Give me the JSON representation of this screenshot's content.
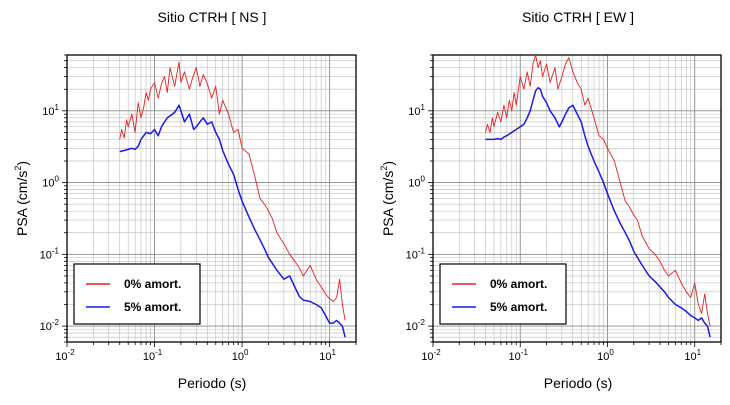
{
  "chart_data": [
    {
      "type": "line",
      "title": "Sitio CTRH [ NS ]",
      "xlabel": "Periodo (s)",
      "ylabel": "PSA (cm/s",
      "ylabel_sup": "2",
      "ylabel_close": ")",
      "xscale": "log",
      "yscale": "log",
      "xlim": [
        0.01,
        20
      ],
      "ylim": [
        0.006,
        60
      ],
      "grid": true,
      "legend_position": "bottom-left",
      "x_ticks": [
        {
          "base": "10",
          "exp": "-2",
          "value": 0.01
        },
        {
          "base": "10",
          "exp": "-1",
          "value": 0.1
        },
        {
          "base": "10",
          "exp": "0",
          "value": 1
        },
        {
          "base": "10",
          "exp": "1",
          "value": 10
        }
      ],
      "y_ticks": [
        {
          "base": "10",
          "exp": "-2",
          "value": 0.01
        },
        {
          "base": "10",
          "exp": "-1",
          "value": 0.1
        },
        {
          "base": "10",
          "exp": "0",
          "value": 1
        },
        {
          "base": "10",
          "exp": "1",
          "value": 10
        }
      ],
      "series": [
        {
          "name": "0% amort.",
          "color": "#e8201e",
          "x": [
            0.04,
            0.042,
            0.045,
            0.048,
            0.05,
            0.055,
            0.06,
            0.065,
            0.07,
            0.075,
            0.08,
            0.085,
            0.09,
            0.1,
            0.11,
            0.12,
            0.13,
            0.14,
            0.15,
            0.17,
            0.19,
            0.2,
            0.22,
            0.25,
            0.27,
            0.3,
            0.33,
            0.36,
            0.4,
            0.45,
            0.5,
            0.55,
            0.6,
            0.7,
            0.8,
            0.9,
            1.0,
            1.2,
            1.4,
            1.6,
            1.8,
            2.0,
            2.2,
            2.5,
            3.0,
            3.5,
            4.0,
            4.5,
            5.0,
            6.0,
            7.0,
            8.0,
            9.0,
            10.0,
            11.0,
            12.0,
            13.0,
            14.0,
            15.0
          ],
          "values": [
            4.0,
            5.5,
            4.2,
            7.5,
            6.0,
            9.0,
            5.0,
            13.0,
            8.0,
            11.0,
            18.0,
            14.0,
            20.0,
            25.0,
            15.0,
            24.0,
            30.0,
            18.0,
            40.0,
            22.0,
            48.0,
            25.0,
            35.0,
            20.0,
            28.0,
            40.0,
            22.0,
            32.0,
            24.0,
            15.0,
            22.0,
            9.0,
            14.0,
            9.0,
            5.0,
            5.5,
            3.0,
            2.5,
            1.2,
            0.6,
            0.5,
            0.4,
            0.32,
            0.2,
            0.14,
            0.1,
            0.08,
            0.065,
            0.05,
            0.07,
            0.045,
            0.035,
            0.028,
            0.024,
            0.022,
            0.025,
            0.045,
            0.02,
            0.012
          ]
        },
        {
          "name": "5% amort.",
          "color": "#1a1aee",
          "x": [
            0.04,
            0.045,
            0.05,
            0.055,
            0.06,
            0.065,
            0.07,
            0.08,
            0.09,
            0.1,
            0.11,
            0.12,
            0.13,
            0.14,
            0.15,
            0.17,
            0.19,
            0.2,
            0.22,
            0.25,
            0.28,
            0.3,
            0.33,
            0.36,
            0.4,
            0.45,
            0.5,
            0.55,
            0.6,
            0.7,
            0.8,
            0.9,
            1.0,
            1.2,
            1.4,
            1.6,
            1.8,
            2.0,
            2.5,
            3.0,
            3.5,
            4.0,
            4.5,
            5.0,
            6.0,
            7.0,
            8.0,
            9.0,
            10.0,
            11.0,
            12.0,
            13.0,
            14.0,
            15.0
          ],
          "values": [
            2.7,
            2.8,
            2.9,
            3.0,
            2.9,
            3.2,
            4.0,
            5.0,
            4.8,
            5.5,
            4.5,
            6.0,
            7.0,
            8.0,
            8.5,
            9.5,
            12.0,
            10.0,
            7.0,
            9.0,
            5.5,
            6.0,
            7.0,
            8.0,
            6.5,
            7.0,
            5.0,
            4.0,
            2.8,
            1.8,
            1.3,
            0.8,
            0.55,
            0.33,
            0.22,
            0.16,
            0.12,
            0.09,
            0.06,
            0.045,
            0.05,
            0.035,
            0.026,
            0.023,
            0.022,
            0.02,
            0.018,
            0.014,
            0.011,
            0.011,
            0.012,
            0.011,
            0.01,
            0.007
          ]
        }
      ]
    },
    {
      "type": "line",
      "title": "Sitio CTRH [ EW ]",
      "xlabel": "Periodo (s)",
      "ylabel": "PSA (cm/s",
      "ylabel_sup": "2",
      "ylabel_close": ")",
      "xscale": "log",
      "yscale": "log",
      "xlim": [
        0.01,
        20
      ],
      "ylim": [
        0.006,
        60
      ],
      "grid": true,
      "legend_position": "bottom-left",
      "x_ticks": [
        {
          "base": "10",
          "exp": "-2",
          "value": 0.01
        },
        {
          "base": "10",
          "exp": "-1",
          "value": 0.1
        },
        {
          "base": "10",
          "exp": "0",
          "value": 1
        },
        {
          "base": "10",
          "exp": "1",
          "value": 10
        }
      ],
      "y_ticks": [
        {
          "base": "10",
          "exp": "-2",
          "value": 0.01
        },
        {
          "base": "10",
          "exp": "-1",
          "value": 0.1
        },
        {
          "base": "10",
          "exp": "0",
          "value": 1
        },
        {
          "base": "10",
          "exp": "1",
          "value": 10
        }
      ],
      "series": [
        {
          "name": "0% amort.",
          "color": "#e8201e",
          "x": [
            0.04,
            0.042,
            0.045,
            0.048,
            0.05,
            0.055,
            0.06,
            0.065,
            0.07,
            0.075,
            0.08,
            0.085,
            0.09,
            0.1,
            0.11,
            0.12,
            0.13,
            0.14,
            0.15,
            0.16,
            0.17,
            0.18,
            0.2,
            0.22,
            0.25,
            0.27,
            0.3,
            0.33,
            0.36,
            0.4,
            0.45,
            0.5,
            0.55,
            0.6,
            0.7,
            0.8,
            0.9,
            1.0,
            1.2,
            1.4,
            1.6,
            1.8,
            2.0,
            2.2,
            2.5,
            3.0,
            3.5,
            4.0,
            4.5,
            5.0,
            6.0,
            7.0,
            8.0,
            9.0,
            10.0,
            11.0,
            12.0,
            13.0,
            14.0,
            15.0
          ],
          "values": [
            5.0,
            6.5,
            5.0,
            8.0,
            6.0,
            9.5,
            7.0,
            12.0,
            8.0,
            14.0,
            10.0,
            18.0,
            12.0,
            30.0,
            20.0,
            35.0,
            22.0,
            45.0,
            60.0,
            40.0,
            50.0,
            30.0,
            45.0,
            25.0,
            40.0,
            20.0,
            30.0,
            45.0,
            55.0,
            35.0,
            25.0,
            20.0,
            12.0,
            15.0,
            8.0,
            4.5,
            4.0,
            3.0,
            2.0,
            1.0,
            0.55,
            0.45,
            0.35,
            0.3,
            0.18,
            0.12,
            0.1,
            0.08,
            0.06,
            0.05,
            0.06,
            0.04,
            0.03,
            0.025,
            0.04,
            0.02,
            0.015,
            0.028,
            0.015,
            0.01
          ]
        },
        {
          "name": "5% amort.",
          "color": "#1a1aee",
          "x": [
            0.04,
            0.045,
            0.05,
            0.055,
            0.06,
            0.065,
            0.07,
            0.08,
            0.09,
            0.1,
            0.11,
            0.12,
            0.13,
            0.14,
            0.15,
            0.16,
            0.17,
            0.18,
            0.2,
            0.22,
            0.25,
            0.28,
            0.3,
            0.33,
            0.36,
            0.4,
            0.45,
            0.5,
            0.55,
            0.6,
            0.7,
            0.8,
            0.9,
            1.0,
            1.2,
            1.4,
            1.6,
            1.8,
            2.0,
            2.5,
            3.0,
            3.5,
            4.0,
            4.5,
            5.0,
            6.0,
            7.0,
            8.0,
            9.0,
            10.0,
            11.0,
            12.0,
            13.0,
            14.0,
            15.0
          ],
          "values": [
            4.0,
            4.0,
            4.0,
            4.1,
            4.0,
            4.3,
            4.5,
            5.0,
            5.5,
            6.0,
            6.5,
            8.0,
            10.0,
            14.0,
            19.0,
            21.0,
            20.0,
            16.0,
            13.0,
            10.0,
            8.0,
            6.0,
            7.0,
            9.0,
            11.0,
            12.0,
            9.0,
            7.0,
            4.5,
            3.2,
            2.0,
            1.4,
            1.0,
            0.7,
            0.4,
            0.27,
            0.2,
            0.15,
            0.11,
            0.07,
            0.05,
            0.042,
            0.035,
            0.03,
            0.025,
            0.02,
            0.018,
            0.016,
            0.014,
            0.013,
            0.012,
            0.013,
            0.011,
            0.01,
            0.007
          ]
        }
      ]
    }
  ]
}
